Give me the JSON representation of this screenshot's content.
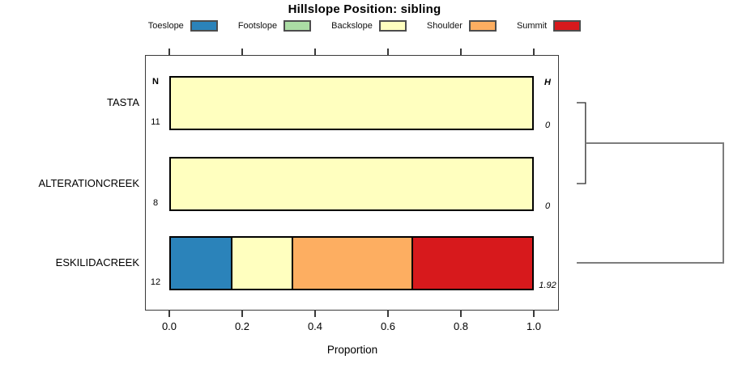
{
  "title": "Hillslope Position: sibling",
  "headers": {
    "n": "N",
    "h": "H"
  },
  "axis": {
    "label": "Proportion",
    "ticks": [
      "0.0",
      "0.2",
      "0.4",
      "0.6",
      "0.8",
      "1.0"
    ]
  },
  "legend": [
    {
      "label": "Toeslope",
      "color": "#2B83BA"
    },
    {
      "label": "Footslope",
      "color": "#ABDDA4"
    },
    {
      "label": "Backslope",
      "color": "#FFFFBF"
    },
    {
      "label": "Shoulder",
      "color": "#FDAE61"
    },
    {
      "label": "Summit",
      "color": "#D7191C"
    }
  ],
  "chart_data": {
    "type": "bar",
    "orientation": "horizontal",
    "stacked": true,
    "title": "Hillslope Position: sibling",
    "xlabel": "Proportion",
    "xlim": [
      0,
      1
    ],
    "xticks": [
      0,
      0.2,
      0.4,
      0.6,
      0.8,
      1.0
    ],
    "grid": false,
    "legend_position": "top",
    "categories": [
      "Toeslope",
      "Footslope",
      "Backslope",
      "Shoulder",
      "Summit"
    ],
    "category_colors": {
      "Toeslope": "#2B83BA",
      "Footslope": "#ABDDA4",
      "Backslope": "#FFFFBF",
      "Shoulder": "#FDAE61",
      "Summit": "#D7191C"
    },
    "rows": [
      {
        "group": "TASTA",
        "N": "11",
        "H": "0",
        "segments": [
          {
            "category": "Backslope",
            "proportion": 1.0
          }
        ]
      },
      {
        "group": "ALTERATIONCREEK",
        "N": "8",
        "H": "0",
        "segments": [
          {
            "category": "Backslope",
            "proportion": 1.0
          }
        ]
      },
      {
        "group": "ESKILIDACREEK",
        "N": "12",
        "H": "1.92",
        "segments": [
          {
            "category": "Toeslope",
            "proportion": 0.167
          },
          {
            "category": "Backslope",
            "proportion": 0.167
          },
          {
            "category": "Shoulder",
            "proportion": 0.333
          },
          {
            "category": "Summit",
            "proportion": 0.333
          }
        ]
      }
    ],
    "dendrogram": {
      "side": "right",
      "tips_order": [
        "TASTA",
        "ALTERATIONCREEK",
        "ESKILIDACREEK"
      ],
      "merges": [
        {
          "members": [
            "TASTA",
            "ALTERATIONCREEK"
          ],
          "relative_height": 0.06
        },
        {
          "members": [
            "[TASTA,ALTERATIONCREEK]",
            "ESKILIDACREEK"
          ],
          "relative_height": 1.0
        }
      ]
    }
  }
}
